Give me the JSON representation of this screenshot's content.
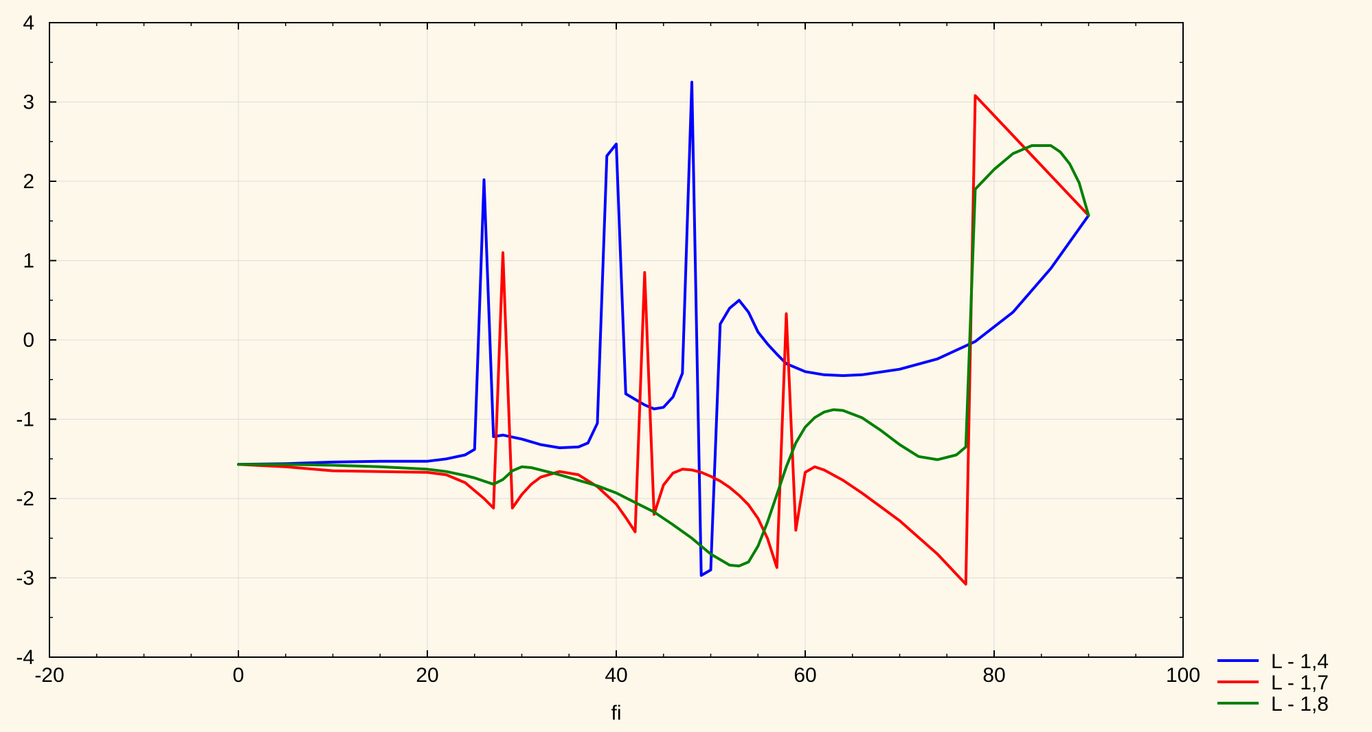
{
  "chart_data": {
    "type": "line",
    "title": "",
    "xlabel": "fi",
    "ylabel": "",
    "xlim": [
      -20,
      100
    ],
    "ylim": [
      -4,
      4
    ],
    "xticks": [
      -20,
      0,
      20,
      40,
      60,
      80,
      100
    ],
    "yticks": [
      -4,
      -3,
      -2,
      -1,
      0,
      1,
      2,
      3,
      4
    ],
    "grid": true,
    "legend_position": "bottom-right",
    "background_color": "#fdf8ea",
    "series": [
      {
        "name": "L - 1,4",
        "color": "#0000ff",
        "x": [
          0,
          5,
          10,
          15,
          20,
          22,
          24,
          25,
          26,
          27,
          28,
          30,
          32,
          34,
          36,
          37,
          38,
          39,
          40,
          41,
          42,
          43,
          44,
          45,
          46,
          47,
          48,
          49,
          50,
          51,
          52,
          53,
          54,
          55,
          56,
          57,
          58,
          60,
          62,
          64,
          66,
          70,
          74,
          78,
          82,
          86,
          90
        ],
        "y": [
          -1.57,
          -1.56,
          -1.54,
          -1.53,
          -1.53,
          -1.5,
          -1.45,
          -1.38,
          2.02,
          -1.22,
          -1.2,
          -1.25,
          -1.32,
          -1.36,
          -1.35,
          -1.3,
          -1.05,
          2.32,
          2.47,
          -0.68,
          -0.75,
          -0.82,
          -0.87,
          -0.85,
          -0.72,
          -0.42,
          3.25,
          -2.97,
          -2.9,
          0.2,
          0.4,
          0.5,
          0.35,
          0.1,
          -0.05,
          -0.18,
          -0.3,
          -0.4,
          -0.44,
          -0.45,
          -0.44,
          -0.37,
          -0.24,
          -0.02,
          0.35,
          0.9,
          1.57
        ]
      },
      {
        "name": "L - 1,7",
        "color": "#ff0000",
        "x": [
          0,
          5,
          10,
          15,
          20,
          22,
          24,
          25,
          26,
          27,
          28,
          29,
          30,
          31,
          32,
          34,
          36,
          38,
          40,
          41,
          42,
          43,
          44,
          45,
          46,
          47,
          48,
          49,
          50,
          51,
          52,
          53,
          54,
          55,
          56,
          57,
          58,
          59,
          60,
          61,
          62,
          64,
          66,
          70,
          74,
          77,
          78,
          90
        ],
        "y": [
          -1.57,
          -1.6,
          -1.65,
          -1.66,
          -1.67,
          -1.7,
          -1.8,
          -1.9,
          -2.0,
          -2.12,
          1.1,
          -2.12,
          -1.95,
          -1.82,
          -1.73,
          -1.66,
          -1.7,
          -1.85,
          -2.07,
          -2.24,
          -2.42,
          0.85,
          -2.2,
          -1.83,
          -1.68,
          -1.63,
          -1.64,
          -1.67,
          -1.72,
          -1.78,
          -1.86,
          -1.96,
          -2.08,
          -2.25,
          -2.5,
          -2.87,
          0.33,
          -2.4,
          -1.67,
          -1.6,
          -1.64,
          -1.77,
          -1.93,
          -2.28,
          -2.7,
          -3.08,
          3.08,
          1.57
        ]
      },
      {
        "name": "L - 1,8",
        "color": "#008000",
        "x": [
          0,
          5,
          10,
          15,
          20,
          22,
          24,
          25,
          26,
          27,
          28,
          29,
          30,
          31,
          32,
          34,
          36,
          38,
          40,
          42,
          44,
          46,
          48,
          50,
          52,
          53,
          54,
          55,
          56,
          57,
          58,
          59,
          60,
          61,
          62,
          63,
          64,
          66,
          68,
          70,
          72,
          74,
          76,
          77,
          78,
          80,
          82,
          84,
          86,
          87,
          88,
          89,
          90
        ],
        "y": [
          -1.57,
          -1.57,
          -1.58,
          -1.6,
          -1.63,
          -1.66,
          -1.71,
          -1.74,
          -1.78,
          -1.82,
          -1.76,
          -1.65,
          -1.6,
          -1.61,
          -1.64,
          -1.7,
          -1.77,
          -1.84,
          -1.93,
          -2.05,
          -2.17,
          -2.33,
          -2.5,
          -2.7,
          -2.84,
          -2.85,
          -2.8,
          -2.6,
          -2.3,
          -1.95,
          -1.6,
          -1.3,
          -1.1,
          -0.98,
          -0.91,
          -0.88,
          -0.89,
          -0.98,
          -1.14,
          -1.32,
          -1.47,
          -1.51,
          -1.45,
          -1.35,
          1.9,
          2.15,
          2.35,
          2.45,
          2.45,
          2.37,
          2.22,
          1.98,
          1.57
        ]
      }
    ]
  }
}
